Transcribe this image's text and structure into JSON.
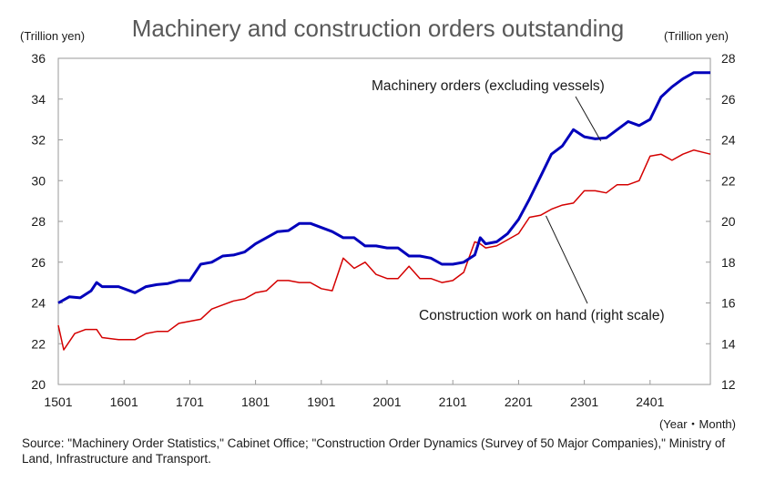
{
  "chart_data": {
    "type": "line",
    "title": "Machinery and construction orders outstanding",
    "y_left_unit": "(Trillion yen)",
    "y_right_unit": "(Trillion yen)",
    "x_unit": "(Year・Month)",
    "x_ticks": [
      "1501",
      "1601",
      "1701",
      "1801",
      "1901",
      "2001",
      "2101",
      "2201",
      "2301",
      "2401"
    ],
    "y_left_ticks": [
      "20",
      "22",
      "24",
      "26",
      "28",
      "30",
      "32",
      "34",
      "36"
    ],
    "y_right_ticks": [
      "12",
      "14",
      "16",
      "18",
      "20",
      "22",
      "24",
      "26",
      "28"
    ],
    "y_left_range": [
      20,
      36
    ],
    "y_right_range": [
      12,
      28
    ],
    "x_range": [
      "2015-01",
      "2024-12"
    ],
    "grid": false,
    "series": [
      {
        "name": "Machinery orders (excluding vessels)",
        "axis": "left",
        "color": "#0000bb",
        "points": [
          [
            "2015-01",
            24.0
          ],
          [
            "2015-03",
            24.3
          ],
          [
            "2015-05",
            24.25
          ],
          [
            "2015-07",
            24.6
          ],
          [
            "2015-08",
            25.0
          ],
          [
            "2015-09",
            24.8
          ],
          [
            "2015-12",
            24.8
          ],
          [
            "2016-03",
            24.5
          ],
          [
            "2016-05",
            24.8
          ],
          [
            "2016-07",
            24.9
          ],
          [
            "2016-09",
            24.95
          ],
          [
            "2016-11",
            25.1
          ],
          [
            "2017-01",
            25.1
          ],
          [
            "2017-03",
            25.9
          ],
          [
            "2017-05",
            26.0
          ],
          [
            "2017-07",
            26.3
          ],
          [
            "2017-09",
            26.35
          ],
          [
            "2017-11",
            26.5
          ],
          [
            "2018-01",
            26.9
          ],
          [
            "2018-03",
            27.2
          ],
          [
            "2018-05",
            27.5
          ],
          [
            "2018-07",
            27.55
          ],
          [
            "2018-09",
            27.9
          ],
          [
            "2018-11",
            27.9
          ],
          [
            "2019-01",
            27.7
          ],
          [
            "2019-03",
            27.5
          ],
          [
            "2019-05",
            27.2
          ],
          [
            "2019-07",
            27.2
          ],
          [
            "2019-09",
            26.8
          ],
          [
            "2019-11",
            26.8
          ],
          [
            "2020-01",
            26.7
          ],
          [
            "2020-03",
            26.7
          ],
          [
            "2020-05",
            26.3
          ],
          [
            "2020-07",
            26.3
          ],
          [
            "2020-09",
            26.2
          ],
          [
            "2020-11",
            25.9
          ],
          [
            "2021-01",
            25.9
          ],
          [
            "2021-03",
            26.0
          ],
          [
            "2021-05",
            26.35
          ],
          [
            "2021-06",
            27.2
          ],
          [
            "2021-07",
            26.9
          ],
          [
            "2021-09",
            27.0
          ],
          [
            "2021-11",
            27.4
          ],
          [
            "2022-01",
            28.1
          ],
          [
            "2022-03",
            29.1
          ],
          [
            "2022-05",
            30.2
          ],
          [
            "2022-07",
            31.3
          ],
          [
            "2022-09",
            31.7
          ],
          [
            "2022-11",
            32.5
          ],
          [
            "2023-01",
            32.15
          ],
          [
            "2023-03",
            32.05
          ],
          [
            "2023-05",
            32.1
          ],
          [
            "2023-07",
            32.5
          ],
          [
            "2023-09",
            32.9
          ],
          [
            "2023-11",
            32.7
          ],
          [
            "2024-01",
            33.0
          ],
          [
            "2024-03",
            34.1
          ],
          [
            "2024-05",
            34.6
          ],
          [
            "2024-07",
            35.0
          ],
          [
            "2024-09",
            35.3
          ],
          [
            "2024-12",
            35.3
          ]
        ]
      },
      {
        "name": "Construction work on hand (right scale)",
        "axis": "right",
        "color": "#d40000",
        "points": [
          [
            "2015-01",
            14.9
          ],
          [
            "2015-02",
            13.7
          ],
          [
            "2015-04",
            14.5
          ],
          [
            "2015-06",
            14.7
          ],
          [
            "2015-08",
            14.7
          ],
          [
            "2015-09",
            14.3
          ],
          [
            "2015-12",
            14.2
          ],
          [
            "2016-03",
            14.2
          ],
          [
            "2016-05",
            14.5
          ],
          [
            "2016-07",
            14.6
          ],
          [
            "2016-09",
            14.6
          ],
          [
            "2016-11",
            15.0
          ],
          [
            "2017-01",
            15.1
          ],
          [
            "2017-03",
            15.2
          ],
          [
            "2017-05",
            15.7
          ],
          [
            "2017-07",
            15.9
          ],
          [
            "2017-09",
            16.1
          ],
          [
            "2017-11",
            16.2
          ],
          [
            "2018-01",
            16.5
          ],
          [
            "2018-03",
            16.6
          ],
          [
            "2018-05",
            17.1
          ],
          [
            "2018-07",
            17.1
          ],
          [
            "2018-09",
            17.0
          ],
          [
            "2018-11",
            17.0
          ],
          [
            "2019-01",
            16.7
          ],
          [
            "2019-03",
            16.6
          ],
          [
            "2019-05",
            18.2
          ],
          [
            "2019-07",
            17.7
          ],
          [
            "2019-09",
            18.0
          ],
          [
            "2019-11",
            17.4
          ],
          [
            "2020-01",
            17.2
          ],
          [
            "2020-03",
            17.2
          ],
          [
            "2020-05",
            17.8
          ],
          [
            "2020-07",
            17.2
          ],
          [
            "2020-09",
            17.2
          ],
          [
            "2020-11",
            17.0
          ],
          [
            "2021-01",
            17.1
          ],
          [
            "2021-03",
            17.5
          ],
          [
            "2021-05",
            19.0
          ],
          [
            "2021-06",
            18.9
          ],
          [
            "2021-07",
            18.7
          ],
          [
            "2021-09",
            18.8
          ],
          [
            "2021-11",
            19.1
          ],
          [
            "2022-01",
            19.4
          ],
          [
            "2022-03",
            20.2
          ],
          [
            "2022-05",
            20.3
          ],
          [
            "2022-07",
            20.6
          ],
          [
            "2022-09",
            20.8
          ],
          [
            "2022-11",
            20.9
          ],
          [
            "2023-01",
            21.5
          ],
          [
            "2023-03",
            21.5
          ],
          [
            "2023-05",
            21.4
          ],
          [
            "2023-07",
            21.8
          ],
          [
            "2023-09",
            21.8
          ],
          [
            "2023-11",
            22.0
          ],
          [
            "2024-01",
            23.2
          ],
          [
            "2024-03",
            23.3
          ],
          [
            "2024-05",
            23.0
          ],
          [
            "2024-07",
            23.3
          ],
          [
            "2024-09",
            23.5
          ],
          [
            "2024-12",
            23.3
          ]
        ]
      }
    ],
    "annotations": [
      {
        "text": "Machinery orders (excluding vessels)",
        "points_to_series": "Machinery orders (excluding vessels)",
        "at": "2023-04"
      },
      {
        "text": "Construction work on hand (right scale)",
        "points_to_series": "Construction work on hand (right scale)",
        "at": "2022-06"
      }
    ]
  },
  "source_note": "Source: \"Machinery Order Statistics,\" Cabinet Office; \"Construction Order Dynamics (Survey of 50 Major Companies),\" Ministry of Land, Infrastructure and Transport."
}
